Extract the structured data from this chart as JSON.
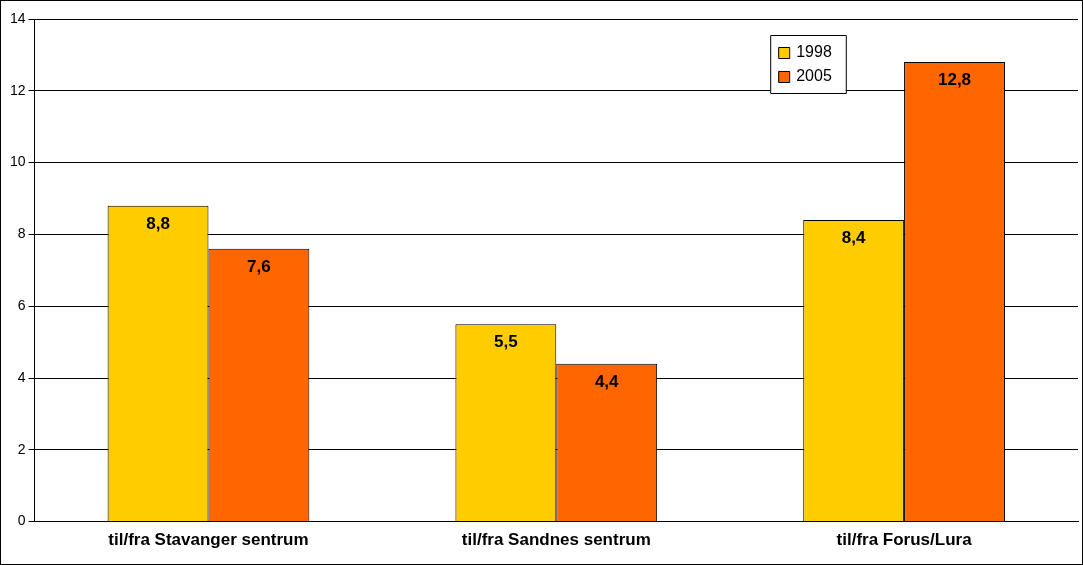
{
  "chart_data": {
    "type": "bar",
    "categories": [
      "til/fra Stavanger sentrum",
      "til/fra Sandnes sentrum",
      "til/fra Forus/Lura"
    ],
    "series": [
      {
        "name": "1998",
        "color": "#ffcc00",
        "values": [
          8.8,
          5.5,
          8.4
        ],
        "value_labels": [
          "8,8",
          "5,5",
          "8,4"
        ]
      },
      {
        "name": "2005",
        "color": "#ff6600",
        "values": [
          7.6,
          4.4,
          12.8
        ],
        "value_labels": [
          "7,6",
          "4,4",
          "12,8"
        ]
      }
    ],
    "ylim": [
      0,
      14
    ],
    "yticks": [
      0,
      2,
      4,
      6,
      8,
      10,
      12,
      14
    ],
    "grid": "y",
    "legend": "top right"
  }
}
